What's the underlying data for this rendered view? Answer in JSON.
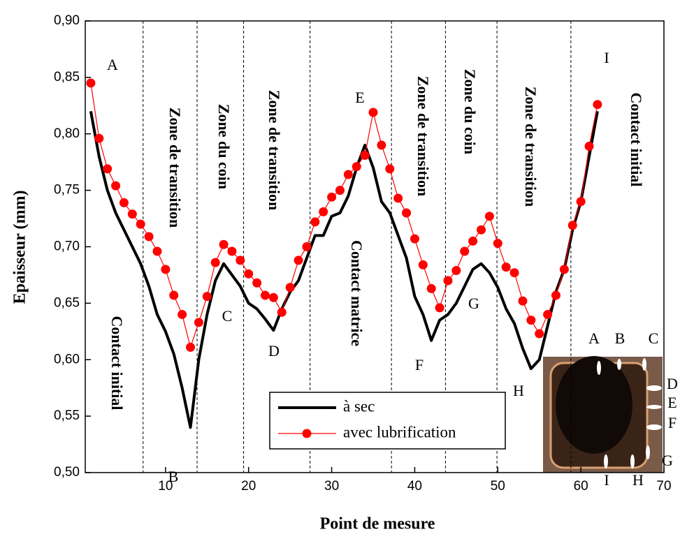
{
  "chart_data": {
    "type": "line",
    "xlabel": "Point de mesure",
    "ylabel": "Epaisseur (mm)",
    "xlim": [
      0,
      70
    ],
    "xticks": [
      10,
      20,
      30,
      40,
      50,
      60,
      70
    ],
    "ylim": [
      0.5,
      0.9
    ],
    "yticks": [
      {
        "value": 0.5,
        "label": "0,50"
      },
      {
        "value": 0.55,
        "label": "0,55"
      },
      {
        "value": 0.6,
        "label": "0,60"
      },
      {
        "value": 0.65,
        "label": "0,65"
      },
      {
        "value": 0.7,
        "label": "0,70"
      },
      {
        "value": 0.75,
        "label": "0,75"
      },
      {
        "value": 0.8,
        "label": "0,80"
      },
      {
        "value": 0.85,
        "label": "0,85"
      },
      {
        "value": 0.9,
        "label": "0,90"
      }
    ],
    "legend": "lower center",
    "x": [
      1,
      2,
      3,
      4,
      5,
      6,
      7,
      8,
      9,
      10,
      11,
      12,
      13,
      14,
      15,
      16,
      17,
      18,
      19,
      20,
      21,
      22,
      23,
      24,
      25,
      26,
      27,
      28,
      29,
      30,
      31,
      32,
      33,
      34,
      35,
      36,
      37,
      38,
      39,
      40,
      41,
      42,
      43,
      44,
      45,
      46,
      47,
      48,
      49,
      50,
      51,
      52,
      53,
      54,
      55,
      56,
      57,
      58,
      59,
      60,
      61,
      62
    ],
    "series": [
      {
        "name": "à sec",
        "color": "#000000",
        "marker": false,
        "values": [
          0.82,
          0.78,
          0.75,
          0.73,
          0.715,
          0.7,
          0.685,
          0.665,
          0.64,
          0.625,
          0.605,
          0.575,
          0.54,
          0.6,
          0.64,
          0.67,
          0.685,
          0.675,
          0.665,
          0.65,
          0.645,
          0.636,
          0.626,
          0.645,
          0.66,
          0.67,
          0.69,
          0.71,
          0.71,
          0.727,
          0.73,
          0.745,
          0.77,
          0.79,
          0.77,
          0.74,
          0.73,
          0.71,
          0.69,
          0.656,
          0.64,
          0.617,
          0.635,
          0.64,
          0.65,
          0.665,
          0.68,
          0.685,
          0.677,
          0.664,
          0.645,
          0.632,
          0.61,
          0.592,
          0.6,
          0.63,
          0.66,
          0.68,
          0.715,
          0.74,
          0.78,
          0.82
        ]
      },
      {
        "name": "avec lubrification",
        "color": "#ff0000",
        "marker": true,
        "values": [
          0.845,
          0.796,
          0.769,
          0.754,
          0.739,
          0.729,
          0.72,
          0.709,
          0.696,
          0.68,
          0.657,
          0.64,
          0.611,
          0.633,
          0.656,
          0.686,
          0.702,
          0.696,
          0.688,
          0.676,
          0.668,
          0.657,
          0.655,
          0.642,
          0.664,
          0.688,
          0.7,
          0.722,
          0.731,
          0.744,
          0.75,
          0.764,
          0.771,
          0.781,
          0.819,
          0.79,
          0.769,
          0.743,
          0.73,
          0.707,
          0.684,
          0.663,
          0.646,
          0.67,
          0.679,
          0.696,
          0.705,
          0.715,
          0.727,
          0.703,
          0.682,
          0.677,
          0.652,
          0.635,
          0.623,
          0.64,
          0.657,
          0.68,
          0.719,
          0.74,
          0.789,
          0.826
        ]
      }
    ],
    "zone_boundaries": [
      7.3,
      13.8,
      19.4,
      27.4,
      37.2,
      43.7,
      49.9,
      58.8
    ],
    "point_labels": [
      "A",
      "B",
      "C",
      "D",
      "E",
      "F",
      "G",
      "H",
      "I"
    ],
    "zone_labels": [
      "Contact initial",
      "Zone de transition",
      "Zone du coin",
      "Zone de transition",
      "Contact matrice",
      "Zone de transition",
      "Zone du coin",
      "Zone de transition",
      "Contact initial"
    ],
    "inset_labels": [
      "A",
      "B",
      "C",
      "D",
      "E",
      "F",
      "G",
      "H",
      "I"
    ]
  }
}
